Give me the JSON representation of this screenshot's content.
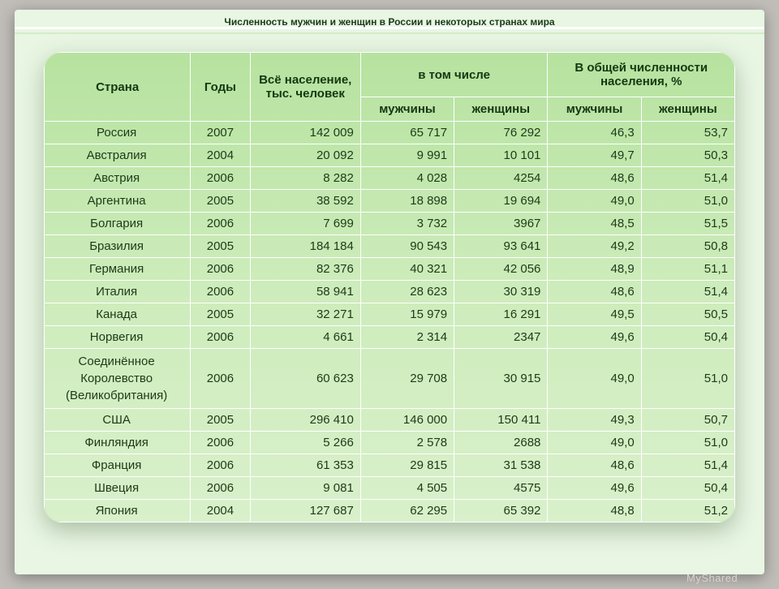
{
  "title": "Численность мужчин и женщин в России и некоторых странах мира",
  "columns": {
    "country": "Страна",
    "years": "Годы",
    "population": "Всё население, тыс. человек",
    "including": "в том числе",
    "share": "В общей численности населения, %",
    "men": "мужчины",
    "women": "женщины"
  },
  "col_widths": [
    "172",
    "70",
    "130",
    "110",
    "110",
    "110",
    "110"
  ],
  "rows": [
    {
      "country": "Россия",
      "year": "2007",
      "pop": "142 009",
      "men": "65 717",
      "women": "76 292",
      "pm": "46,3",
      "pw": "53,7"
    },
    {
      "country": "Австралия",
      "year": "2004",
      "pop": "20 092",
      "men": "9 991",
      "women": "10 101",
      "pm": "49,7",
      "pw": "50,3"
    },
    {
      "country": "Австрия",
      "year": "2006",
      "pop": "8 282",
      "men": "4 028",
      "women": "4254",
      "pm": "48,6",
      "pw": "51,4"
    },
    {
      "country": "Аргентина",
      "year": "2005",
      "pop": "38 592",
      "men": "18 898",
      "women": "19 694",
      "pm": "49,0",
      "pw": "51,0"
    },
    {
      "country": "Болгария",
      "year": "2006",
      "pop": "7 699",
      "men": "3 732",
      "women": "3967",
      "pm": "48,5",
      "pw": "51,5"
    },
    {
      "country": "Бразилия",
      "year": "2005",
      "pop": "184 184",
      "men": "90 543",
      "women": "93 641",
      "pm": "49,2",
      "pw": "50,8"
    },
    {
      "country": "Германия",
      "year": "2006",
      "pop": "82 376",
      "men": "40 321",
      "women": "42 056",
      "pm": "48,9",
      "pw": "51,1"
    },
    {
      "country": "Италия",
      "year": "2006",
      "pop": "58 941",
      "men": "28 623",
      "women": "30 319",
      "pm": "48,6",
      "pw": "51,4"
    },
    {
      "country": "Канада",
      "year": "2005",
      "pop": "32 271",
      "men": "15 979",
      "women": "16 291",
      "pm": "49,5",
      "pw": "50,5"
    },
    {
      "country": "Норвегия",
      "year": "2006",
      "pop": "4 661",
      "men": "2 314",
      "women": "2347",
      "pm": "49,6",
      "pw": "50,4"
    },
    {
      "country": "Соединённое\nКоролевство\n(Великобритания)",
      "year": "2006",
      "pop": "60 623",
      "men": "29 708",
      "women": "30 915",
      "pm": "49,0",
      "pw": "51,0"
    },
    {
      "country": "США",
      "year": "2005",
      "pop": "296 410",
      "men": "146 000",
      "women": "150 411",
      "pm": "49,3",
      "pw": "50,7"
    },
    {
      "country": "Финляндия",
      "year": "2006",
      "pop": "5 266",
      "men": "2 578",
      "women": "2688",
      "pm": "49,0",
      "pw": "51,0"
    },
    {
      "country": "Франция",
      "year": "2006",
      "pop": "61 353",
      "men": "29 815",
      "women": "31 538",
      "pm": "48,6",
      "pw": "51,4"
    },
    {
      "country": "Швеция",
      "year": "2006",
      "pop": "9 081",
      "men": "4 505",
      "women": "4575",
      "pm": "49,6",
      "pw": "50,4"
    },
    {
      "country": "Япония",
      "year": "2004",
      "pop": "127 687",
      "men": "62 295",
      "women": "65 392",
      "pm": "48,8",
      "pw": "51,2"
    }
  ],
  "watermark": "MyShared"
}
